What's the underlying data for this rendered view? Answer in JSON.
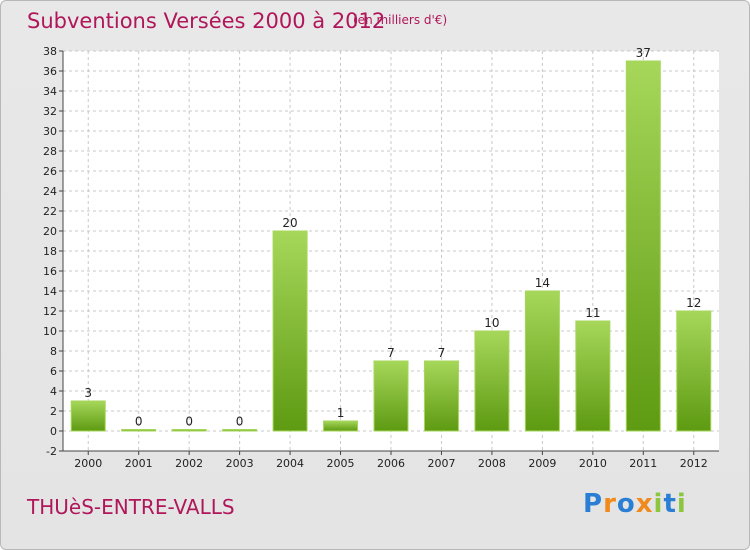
{
  "header": {
    "title": "Subventions Versées 2000 à 2012",
    "subtitle": "(en milliers d'€)"
  },
  "footer": {
    "commune": "THUèS-ENTRE-VALLS",
    "logo": [
      {
        "char": "P",
        "color": "#2a7fd4"
      },
      {
        "char": "r",
        "color": "#f08a1c"
      },
      {
        "char": "o",
        "color": "#2a7fd4"
      },
      {
        "char": "x",
        "color": "#f08a1c"
      },
      {
        "char": "i",
        "color": "#8cc63f"
      },
      {
        "char": "t",
        "color": "#2a7fd4"
      },
      {
        "char": "i",
        "color": "#8cc63f"
      }
    ]
  },
  "colors": {
    "bar_light": "#a6d75a",
    "bar_dark": "#5e9a12",
    "title": "#b0165a",
    "grid": "#c8c8c8"
  },
  "chart_data": {
    "type": "bar",
    "title": "Subventions Versées 2000 à 2012",
    "subtitle": "(en milliers d'€)",
    "categories": [
      "2000",
      "2001",
      "2002",
      "2003",
      "2004",
      "2005",
      "2006",
      "2007",
      "2008",
      "2009",
      "2010",
      "2011",
      "2012"
    ],
    "values": [
      3,
      0,
      0,
      0,
      20,
      1,
      7,
      7,
      10,
      14,
      11,
      37,
      12
    ],
    "ylim": [
      -2,
      38
    ],
    "yticks": [
      -2,
      0,
      2,
      4,
      6,
      8,
      10,
      12,
      14,
      16,
      18,
      20,
      22,
      24,
      26,
      28,
      30,
      32,
      34,
      36,
      38
    ],
    "grid": true,
    "data_labels": true
  }
}
